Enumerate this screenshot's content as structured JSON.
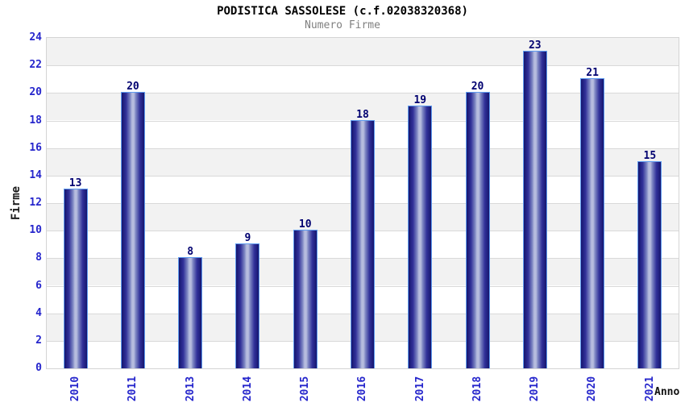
{
  "chart_data": {
    "type": "bar",
    "title": "PODISTICA SASSOLESE (c.f.02038320368)",
    "subtitle": "Numero Firme",
    "xlabel": "Anno",
    "ylabel": "Firme",
    "categories": [
      "2010",
      "2011",
      "2013",
      "2014",
      "2015",
      "2016",
      "2017",
      "2018",
      "2019",
      "2020",
      "2021"
    ],
    "values": [
      13,
      20,
      8,
      9,
      10,
      18,
      19,
      20,
      23,
      21,
      15
    ],
    "ylim": [
      0,
      24
    ],
    "ytick_step": 2,
    "grid": true,
    "legend": "none",
    "band_striping": "alternating horizontal bands every 2 units, gray starting at top",
    "colors": {
      "title": "#000000",
      "subtitle": "#808080",
      "tick_label": "#2626cc",
      "value_label": "#000070",
      "axis_title_y": "#1a1a1a",
      "axis_title_x": "#111111",
      "bar_dark": "#15156e",
      "bar_mid": "#32329a",
      "bar_light": "#b6bcde",
      "bar_border": "#5f9cf0",
      "band_gray": "#f2f2f2",
      "band_white": "#ffffff",
      "gridline": "#d9d9d9",
      "plot_border": "#d4d4d4",
      "background": "#ffffff"
    }
  }
}
